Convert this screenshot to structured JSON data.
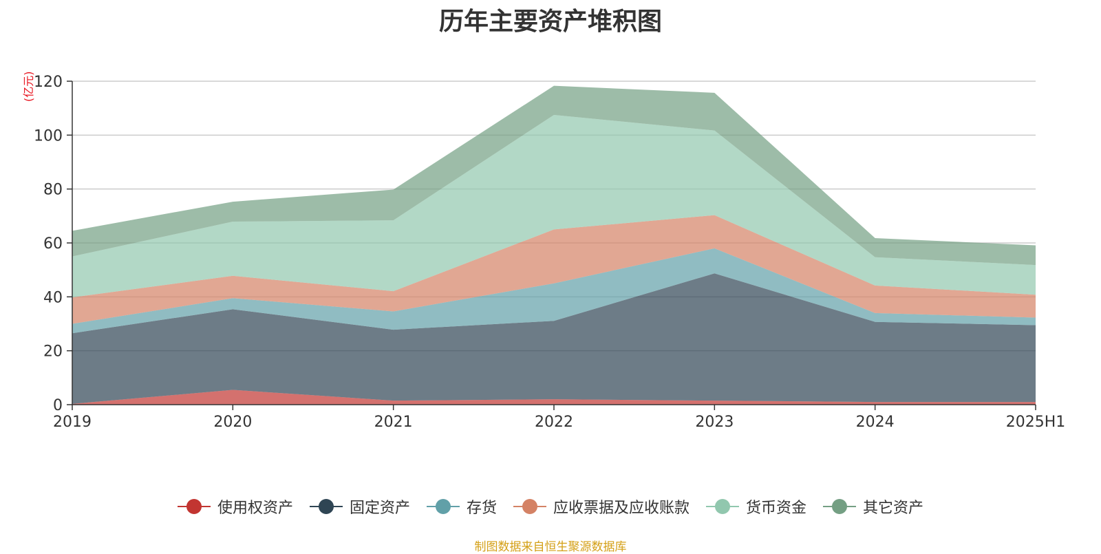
{
  "chart_data": {
    "type": "area",
    "title": "历年主要资产堆积图",
    "ylabel": "(亿元)",
    "xlabel": "",
    "categories": [
      "2019",
      "2020",
      "2021",
      "2022",
      "2023",
      "2024",
      "2025H1"
    ],
    "ylim": [
      0,
      120
    ],
    "yticks": [
      0,
      20,
      40,
      60,
      80,
      100,
      120
    ],
    "grid": true,
    "legend_position": "bottom",
    "stacked": true,
    "series": [
      {
        "name": "使用权资产",
        "color": "#c23531",
        "values": [
          0.3,
          5.5,
          1.5,
          2.0,
          1.5,
          1.0,
          1.0
        ]
      },
      {
        "name": "固定资产",
        "color": "#2f4554",
        "values": [
          26.2,
          29.9,
          26.3,
          29.1,
          47.2,
          29.7,
          28.5
        ]
      },
      {
        "name": "存货",
        "color": "#61a0a8",
        "values": [
          3.5,
          4.1,
          6.8,
          13.9,
          9.3,
          3.3,
          2.8
        ]
      },
      {
        "name": "应收票据及应收账款",
        "color": "#d48265",
        "values": [
          9.8,
          8.3,
          7.5,
          20.0,
          12.3,
          10.2,
          8.5
        ]
      },
      {
        "name": "货币资金",
        "color": "#91c7ae",
        "values": [
          15.2,
          20.1,
          26.3,
          42.5,
          31.4,
          10.5,
          11.0
        ]
      },
      {
        "name": "其它资产",
        "color": "#749f83",
        "values": [
          9.5,
          7.4,
          11.4,
          10.8,
          14.0,
          7.1,
          7.3
        ]
      }
    ]
  },
  "source_note": "制图数据来自恒生聚源数据库",
  "source_color": "#d4a017",
  "unit_color": "#e8141f"
}
